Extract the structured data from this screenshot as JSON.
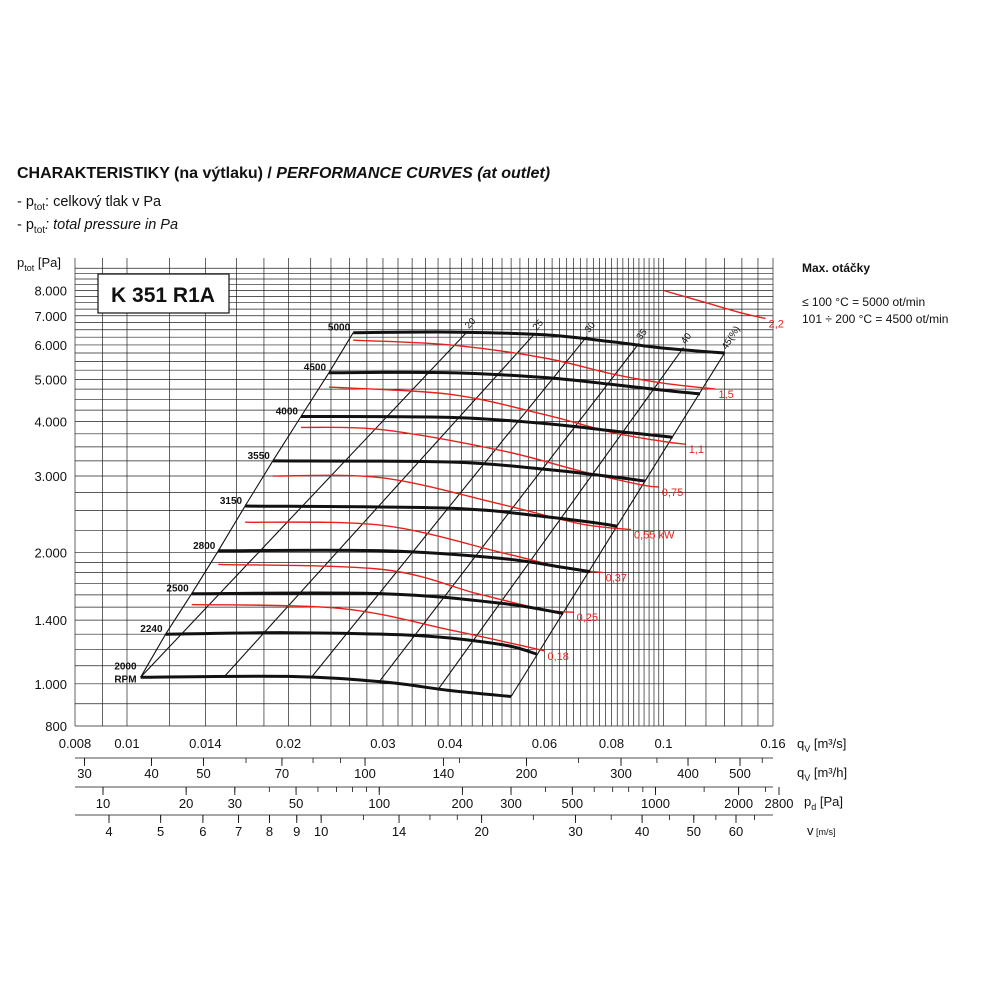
{
  "title": {
    "cz": "CHARAKTERISTIKY (na výtlaku) / ",
    "en": "PERFORMANCE CURVES (at outlet)"
  },
  "legend_lines": [
    {
      "prefix": "- p",
      "sub": "tot",
      "text": ": celkový tlak v Pa",
      "italic": false
    },
    {
      "prefix": "- p",
      "sub": "tot",
      "text": ": total pressure in Pa",
      "italic": true
    }
  ],
  "model": "K 351 R1A",
  "max_speed": {
    "heading": "Max. otáčky",
    "lines": [
      "≤ 100 °C = 5000 ot/min",
      "101 ÷ 200 °C = 4500 ot/min"
    ]
  },
  "colors": {
    "speed_curve": "#111111",
    "power_curve": "#e8201c",
    "grid": "#222222"
  },
  "chart_data": {
    "type": "line",
    "y_axis": {
      "label_main": "p",
      "label_sub": "tot",
      "label_unit": " [Pa]",
      "scale": "log",
      "range": [
        800,
        9500
      ],
      "tick_labels": [
        {
          "v": 800,
          "t": "800"
        },
        {
          "v": 1000,
          "t": "1.000"
        },
        {
          "v": 1400,
          "t": "1.400"
        },
        {
          "v": 2000,
          "t": "2.000"
        },
        {
          "v": 3000,
          "t": "3.000"
        },
        {
          "v": 4000,
          "t": "4.000"
        },
        {
          "v": 5000,
          "t": "5.000"
        },
        {
          "v": 6000,
          "t": "6.000"
        },
        {
          "v": 7000,
          "t": "7.000"
        },
        {
          "v": 8000,
          "t": "8.000"
        }
      ]
    },
    "x_axes": [
      {
        "name": "qv_m3s",
        "label": "q",
        "sub": "V",
        "unit": " [m³/s]",
        "ticks": [
          {
            "v": 0.008,
            "t": "0.008"
          },
          {
            "v": 0.01,
            "t": "0.01"
          },
          {
            "v": 0.014,
            "t": "0.014"
          },
          {
            "v": 0.02,
            "t": "0.02"
          },
          {
            "v": 0.03,
            "t": "0.03"
          },
          {
            "v": 0.04,
            "t": "0.04"
          },
          {
            "v": 0.06,
            "t": "0.06"
          },
          {
            "v": 0.08,
            "t": "0.08"
          },
          {
            "v": 0.1,
            "t": "0.1"
          },
          {
            "v": 0.16,
            "t": "0.16"
          }
        ]
      },
      {
        "name": "qv_m3h",
        "label": "q",
        "sub": "V",
        "unit": " [m³/h]",
        "ticks": [
          {
            "v": 30,
            "t": "30"
          },
          {
            "v": 40,
            "t": "40"
          },
          {
            "v": 50,
            "t": "50"
          },
          {
            "v": 70,
            "t": "70"
          },
          {
            "v": 100,
            "t": "100"
          },
          {
            "v": 140,
            "t": "140"
          },
          {
            "v": 200,
            "t": "200"
          },
          {
            "v": 300,
            "t": "300"
          },
          {
            "v": 400,
            "t": "400"
          },
          {
            "v": 500,
            "t": "500"
          }
        ]
      },
      {
        "name": "pd",
        "label": "p",
        "sub": "d",
        "unit": " [Pa]",
        "ticks": [
          {
            "v": 10,
            "t": "10"
          },
          {
            "v": 20,
            "t": "20"
          },
          {
            "v": 30,
            "t": "30"
          },
          {
            "v": 50,
            "t": "50"
          },
          {
            "v": 100,
            "t": "100"
          },
          {
            "v": 200,
            "t": "200"
          },
          {
            "v": 300,
            "t": "300"
          },
          {
            "v": 500,
            "t": "500"
          },
          {
            "v": 1000,
            "t": "1000"
          },
          {
            "v": 2000,
            "t": "2000"
          },
          {
            "v": 2800,
            "t": "2800"
          }
        ]
      },
      {
        "name": "v",
        "label": "v",
        "sub": "",
        "unit": " [m/s]",
        "ticks": [
          {
            "v": 4,
            "t": "4"
          },
          {
            "v": 5,
            "t": "5"
          },
          {
            "v": 6,
            "t": "6"
          },
          {
            "v": 7,
            "t": "7"
          },
          {
            "v": 8,
            "t": "8"
          },
          {
            "v": 9,
            "t": "9"
          },
          {
            "v": 10,
            "t": "10"
          },
          {
            "v": 14,
            "t": "14"
          },
          {
            "v": 20,
            "t": "20"
          },
          {
            "v": 30,
            "t": "30"
          },
          {
            "v": 40,
            "t": "40"
          },
          {
            "v": 50,
            "t": "50"
          },
          {
            "v": 60,
            "t": "60"
          }
        ]
      }
    ],
    "speed_series": [
      {
        "name": "5000",
        "points": [
          [
            0.0264,
            6400
          ],
          [
            0.04,
            6420
          ],
          [
            0.06,
            6330
          ],
          [
            0.08,
            6100
          ],
          [
            0.1,
            5900
          ],
          [
            0.13,
            5750
          ]
        ]
      },
      {
        "name": "4500",
        "points": [
          [
            0.0238,
            5180
          ],
          [
            0.04,
            5180
          ],
          [
            0.06,
            5050
          ],
          [
            0.08,
            4870
          ],
          [
            0.1,
            4720
          ],
          [
            0.117,
            4630
          ]
        ]
      },
      {
        "name": "4000",
        "points": [
          [
            0.0211,
            4110
          ],
          [
            0.04,
            4090
          ],
          [
            0.06,
            3960
          ],
          [
            0.08,
            3810
          ],
          [
            0.1,
            3700
          ],
          [
            0.104,
            3680
          ]
        ]
      },
      {
        "name": "3550",
        "points": [
          [
            0.0187,
            3250
          ],
          [
            0.04,
            3230
          ],
          [
            0.06,
            3110
          ],
          [
            0.08,
            2990
          ],
          [
            0.0925,
            2920
          ]
        ]
      },
      {
        "name": "3150",
        "points": [
          [
            0.0166,
            2560
          ],
          [
            0.04,
            2530
          ],
          [
            0.06,
            2420
          ],
          [
            0.075,
            2340
          ],
          [
            0.082,
            2300
          ]
        ]
      },
      {
        "name": "2800",
        "points": [
          [
            0.0148,
            2020
          ],
          [
            0.03,
            2020
          ],
          [
            0.05,
            1940
          ],
          [
            0.065,
            1850
          ],
          [
            0.073,
            1810
          ]
        ]
      },
      {
        "name": "2500",
        "points": [
          [
            0.0132,
            1610
          ],
          [
            0.03,
            1610
          ],
          [
            0.05,
            1530
          ],
          [
            0.065,
            1450
          ]
        ]
      },
      {
        "name": "2240",
        "points": [
          [
            0.0118,
            1300
          ],
          [
            0.02,
            1310
          ],
          [
            0.035,
            1290
          ],
          [
            0.05,
            1230
          ],
          [
            0.058,
            1170
          ]
        ]
      },
      {
        "name": "2000 RPM",
        "points": [
          [
            0.0106,
            1035
          ],
          [
            0.02,
            1040
          ],
          [
            0.03,
            1010
          ],
          [
            0.04,
            965
          ],
          [
            0.052,
            935
          ]
        ]
      }
    ],
    "power_series": [
      {
        "name": "2,2",
        "points": [
          [
            0.1,
            8000
          ],
          [
            0.12,
            7500
          ],
          [
            0.14,
            7100
          ],
          [
            0.155,
            6900
          ]
        ]
      },
      {
        "name": "1,5",
        "points": [
          [
            0.0264,
            6150
          ],
          [
            0.04,
            6000
          ],
          [
            0.06,
            5600
          ],
          [
            0.08,
            5150
          ],
          [
            0.1,
            4900
          ],
          [
            0.125,
            4750
          ]
        ]
      },
      {
        "name": "1,1",
        "points": [
          [
            0.0238,
            4800
          ],
          [
            0.04,
            4620
          ],
          [
            0.06,
            4150
          ],
          [
            0.08,
            3780
          ],
          [
            0.1,
            3600
          ],
          [
            0.11,
            3550
          ]
        ]
      },
      {
        "name": "0,75",
        "points": [
          [
            0.0211,
            3880
          ],
          [
            0.03,
            3830
          ],
          [
            0.05,
            3430
          ],
          [
            0.07,
            3080
          ],
          [
            0.09,
            2870
          ],
          [
            0.098,
            2830
          ]
        ]
      },
      {
        "name": "0,55 kW",
        "points": [
          [
            0.0187,
            3000
          ],
          [
            0.03,
            2970
          ],
          [
            0.05,
            2580
          ],
          [
            0.07,
            2330
          ],
          [
            0.087,
            2260
          ]
        ]
      },
      {
        "name": "0,37",
        "points": [
          [
            0.0166,
            2350
          ],
          [
            0.03,
            2310
          ],
          [
            0.05,
            2000
          ],
          [
            0.065,
            1850
          ],
          [
            0.077,
            1800
          ]
        ]
      },
      {
        "name": "0,25",
        "points": [
          [
            0.0148,
            1880
          ],
          [
            0.03,
            1830
          ],
          [
            0.045,
            1610
          ],
          [
            0.06,
            1480
          ],
          [
            0.068,
            1460
          ]
        ]
      },
      {
        "name": "0,18",
        "points": [
          [
            0.0132,
            1520
          ],
          [
            0.025,
            1490
          ],
          [
            0.04,
            1330
          ],
          [
            0.055,
            1220
          ],
          [
            0.06,
            1190
          ]
        ]
      }
    ],
    "efficiency_lines": [
      {
        "label": "20",
        "points": [
          [
            0.0106,
            1035
          ],
          [
            0.043,
            6420
          ]
        ]
      },
      {
        "label": "25",
        "points": [
          [
            0.0152,
            1040
          ],
          [
            0.0575,
            6360
          ]
        ]
      },
      {
        "label": "30",
        "points": [
          [
            0.022,
            1030
          ],
          [
            0.072,
            6280
          ]
        ]
      },
      {
        "label": "35",
        "points": [
          [
            0.0295,
            1010
          ],
          [
            0.09,
            6050
          ]
        ]
      },
      {
        "label": "40",
        "points": [
          [
            0.038,
            970
          ],
          [
            0.109,
            5920
          ]
        ]
      },
      {
        "label": "45(%)",
        "points": [
          [
            0.052,
            935
          ],
          [
            0.13,
            5750
          ]
        ]
      }
    ]
  }
}
